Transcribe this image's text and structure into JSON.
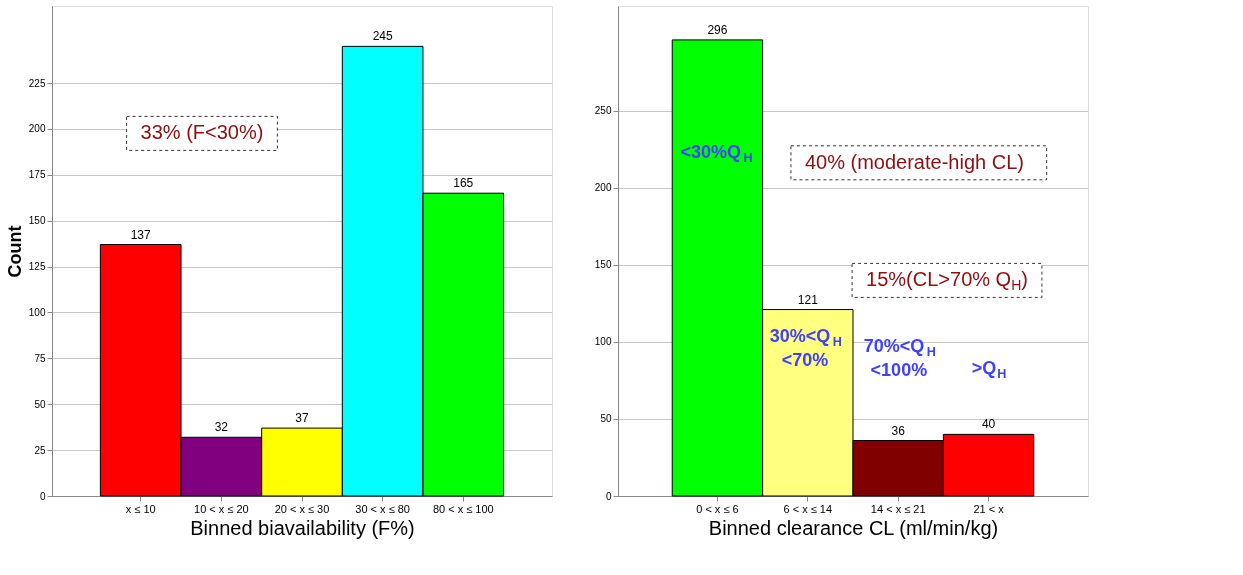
{
  "chart_data": [
    {
      "type": "bar",
      "ylabel": "Count",
      "xlabel": "Binned biavailability (F%)",
      "categories": [
        "x ≤ 10",
        "10 < x ≤ 20",
        "20 < x ≤ 30",
        "30 < x ≤ 80",
        "80 < x ≤ 100"
      ],
      "values": [
        137,
        32,
        37,
        245,
        165
      ],
      "colors": [
        "#ff0000",
        "#800080",
        "#ffff00",
        "#00ffff",
        "#00ff00"
      ],
      "ylim": [
        0,
        267
      ],
      "yticks": [
        0,
        25,
        50,
        75,
        100,
        125,
        150,
        175,
        200,
        225
      ],
      "grid": "y",
      "data_labels": true,
      "annotations": [
        "33% (F<30%)"
      ]
    },
    {
      "type": "bar",
      "xlabel": "Binned clearance CL (ml/min/kg)",
      "categories": [
        "0 < x ≤ 6",
        "6 < x ≤ 14",
        "14 < x ≤ 21",
        "21 < x"
      ],
      "values": [
        296,
        121,
        36,
        40
      ],
      "colors": [
        "#00ff00",
        "#ffff80",
        "#800000",
        "#ff0000"
      ],
      "ylim": [
        0,
        318
      ],
      "yticks": [
        0,
        50,
        100,
        150,
        200,
        250
      ],
      "grid": "y",
      "data_labels": true,
      "annotations": [
        "40% (moderate-high CL)",
        "15%(CL>70% Q$_{H}$)",
        "<30%Q$_{H}$",
        "30%<Q$_{H}$ <70%",
        "70%<Q$_{H}$ <100%",
        ">Q$_{H}$"
      ]
    }
  ]
}
